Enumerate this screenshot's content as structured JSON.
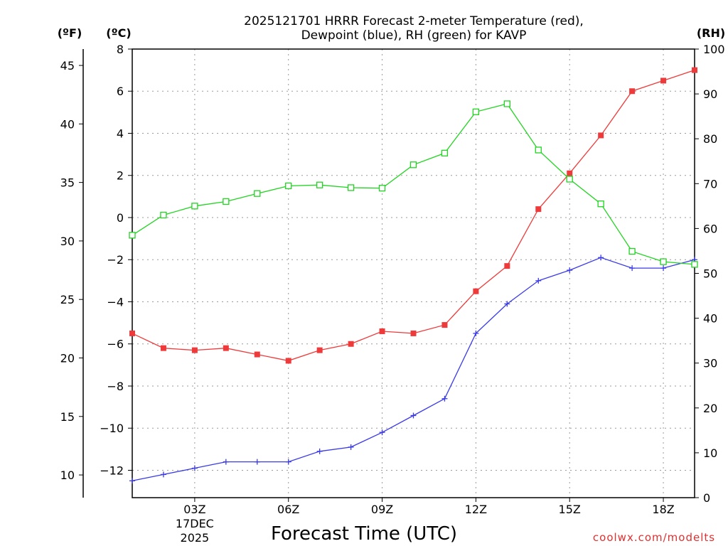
{
  "chart_data": {
    "type": "line",
    "title_line1": "2025121701 HRRR Forecast 2-meter Temperature (red),",
    "title_line2": "Dewpoint (blue), RH (green) for KAVP",
    "xlabel": "Forecast Time (UTC)",
    "source": "coolwx.com/modelts",
    "units": {
      "fahrenheit": "(ºF)",
      "celsius": "(ºC)",
      "rh": "(RH)"
    },
    "x": [
      1,
      2,
      3,
      4,
      5,
      6,
      7,
      8,
      9,
      10,
      11,
      12,
      13,
      14,
      15,
      16,
      17,
      18,
      19
    ],
    "xlim": [
      1,
      19
    ],
    "x_ticks": [
      {
        "x": 3,
        "label": "03Z",
        "date_line1": "17DEC",
        "date_line2": "2025"
      },
      {
        "x": 6,
        "label": "06Z"
      },
      {
        "x": 9,
        "label": "09Z"
      },
      {
        "x": 12,
        "label": "12Z"
      },
      {
        "x": 15,
        "label": "15Z"
      },
      {
        "x": 18,
        "label": "18Z"
      }
    ],
    "ylim_celsius": [
      -13.3,
      8
    ],
    "y_ticks_celsius": [
      8,
      6,
      4,
      2,
      0,
      -2,
      -4,
      -6,
      -8,
      -10,
      -12
    ],
    "y_ticks_fahrenheit": [
      45,
      40,
      35,
      30,
      25,
      20,
      15,
      10
    ],
    "ylim_rh": [
      0,
      100
    ],
    "y_ticks_rh": [
      0,
      10,
      20,
      30,
      40,
      50,
      60,
      70,
      80,
      90,
      100
    ],
    "grid": true,
    "series": [
      {
        "name": "Temperature",
        "units": "celsius",
        "color": "#ee3a3a",
        "marker": "filled-square",
        "values": [
          -5.5,
          -6.2,
          -6.3,
          -6.2,
          -6.5,
          -6.8,
          -6.3,
          -6.0,
          -5.4,
          -5.5,
          -5.1,
          -3.5,
          -2.3,
          0.4,
          2.1,
          3.9,
          6.0,
          6.5,
          7.0
        ]
      },
      {
        "name": "Dewpoint",
        "units": "celsius",
        "color": "#3a3ae8",
        "marker": "plus",
        "values": [
          -12.5,
          -12.2,
          -11.9,
          -11.6,
          -11.6,
          -11.6,
          -11.1,
          -10.9,
          -10.2,
          -9.4,
          -8.6,
          -5.5,
          -4.1,
          -3.0,
          -2.5,
          -1.9,
          -2.4,
          -2.4,
          -2.0
        ]
      },
      {
        "name": "RH",
        "units": "rh",
        "color": "#22d422",
        "marker": "open-square",
        "values": [
          58.5,
          63,
          65,
          66,
          67.8,
          69.5,
          69.7,
          69.1,
          69,
          74.2,
          76.8,
          86,
          87.8,
          77.5,
          71,
          65.5,
          54.9,
          52.6,
          52
        ]
      }
    ]
  }
}
